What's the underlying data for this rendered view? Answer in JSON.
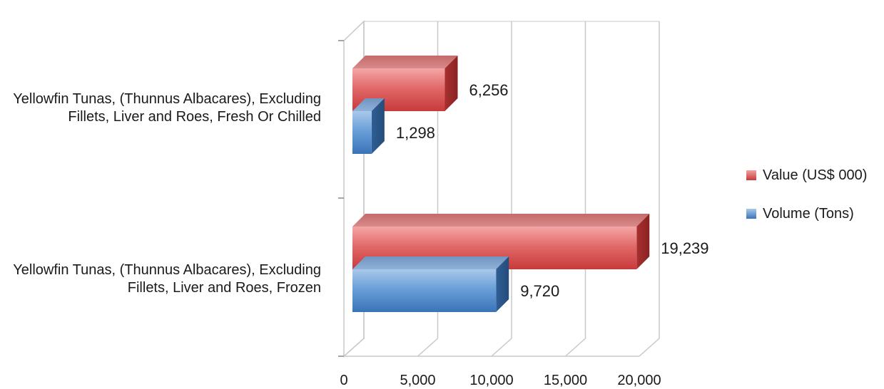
{
  "chart_data": {
    "type": "bar",
    "orientation": "horizontal",
    "style": "3d",
    "categories": [
      "Yellowfin Tunas, (Thunnus Albacares), Excluding Fillets, Liver and Roes, Fresh Or Chilled",
      "Yellowfin Tunas, (Thunnus Albacares), Excluding Fillets, Liver and Roes, Frozen"
    ],
    "series": [
      {
        "name": "Value (US$ 000)",
        "values": [
          6256,
          19239
        ],
        "labels": [
          "6,256",
          "19,239"
        ],
        "color": "#e05a5a"
      },
      {
        "name": "Volume (Tons)",
        "values": [
          1298,
          9720
        ],
        "labels": [
          "1,298",
          "9,720"
        ],
        "color": "#4a86c8"
      }
    ],
    "xticks": [
      "0",
      "5,000",
      "10,000",
      "15,000",
      "20,000"
    ],
    "xlim": [
      0,
      20000
    ],
    "grid": true,
    "legend_position": "right"
  }
}
